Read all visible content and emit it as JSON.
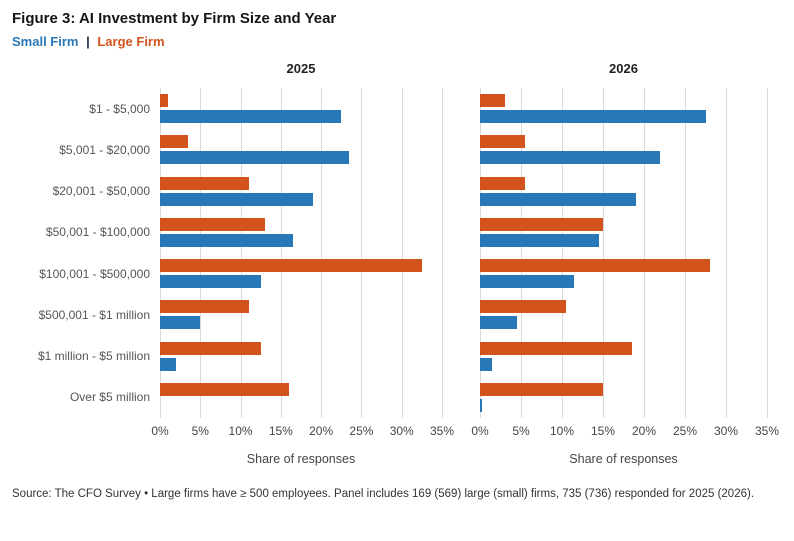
{
  "header": {
    "title": "Figure 3: AI Investment by Firm Size and Year"
  },
  "legend": {
    "small_label": "Small Firm",
    "separator": "|",
    "large_label": "Large Firm"
  },
  "colors": {
    "small": "#2878b8",
    "large": "#d2541c",
    "grid": "#d9d9d9"
  },
  "chart_data": {
    "type": "bar",
    "orientation": "horizontal",
    "title": "Figure 3: AI Investment by Firm Size and Year",
    "categories": [
      "$1 - $5,000",
      "$5,001 - $20,000",
      "$20,001 - $50,000",
      "$50,001 - $100,000",
      "$100,001 - $500,000",
      "$500,001 - $1 million",
      "$1 million - $5 million",
      "Over $5 million"
    ],
    "xlabel": "Share of responses",
    "xlim": [
      0,
      35
    ],
    "ticks": [
      "0%",
      "5%",
      "10%",
      "15%",
      "20%",
      "25%",
      "30%",
      "35%"
    ],
    "tick_values": [
      0,
      5,
      10,
      15,
      20,
      25,
      30,
      35
    ],
    "grid": "vertical",
    "legend_position": "top-left",
    "panels": [
      {
        "title": "2025",
        "series": [
          {
            "name": "Large Firm",
            "color_key": "large",
            "values": [
              1,
              3.5,
              11,
              13,
              32.5,
              11,
              12.5,
              16
            ]
          },
          {
            "name": "Small Firm",
            "color_key": "small",
            "values": [
              22.5,
              23.5,
              19,
              16.5,
              12.5,
              5,
              2,
              0
            ]
          }
        ]
      },
      {
        "title": "2026",
        "series": [
          {
            "name": "Large Firm",
            "color_key": "large",
            "values": [
              3,
              5.5,
              5.5,
              15,
              28,
              10.5,
              18.5,
              15
            ]
          },
          {
            "name": "Small Firm",
            "color_key": "small",
            "values": [
              27.5,
              22,
              19,
              14.5,
              11.5,
              4.5,
              1.5,
              0.3
            ]
          }
        ]
      }
    ]
  },
  "footer": {
    "source": "Source: The CFO Survey • Large firms have ≥ 500 employees. Panel includes 169 (569) large (small) firms, 735 (736) responded for 2025 (2026)."
  }
}
